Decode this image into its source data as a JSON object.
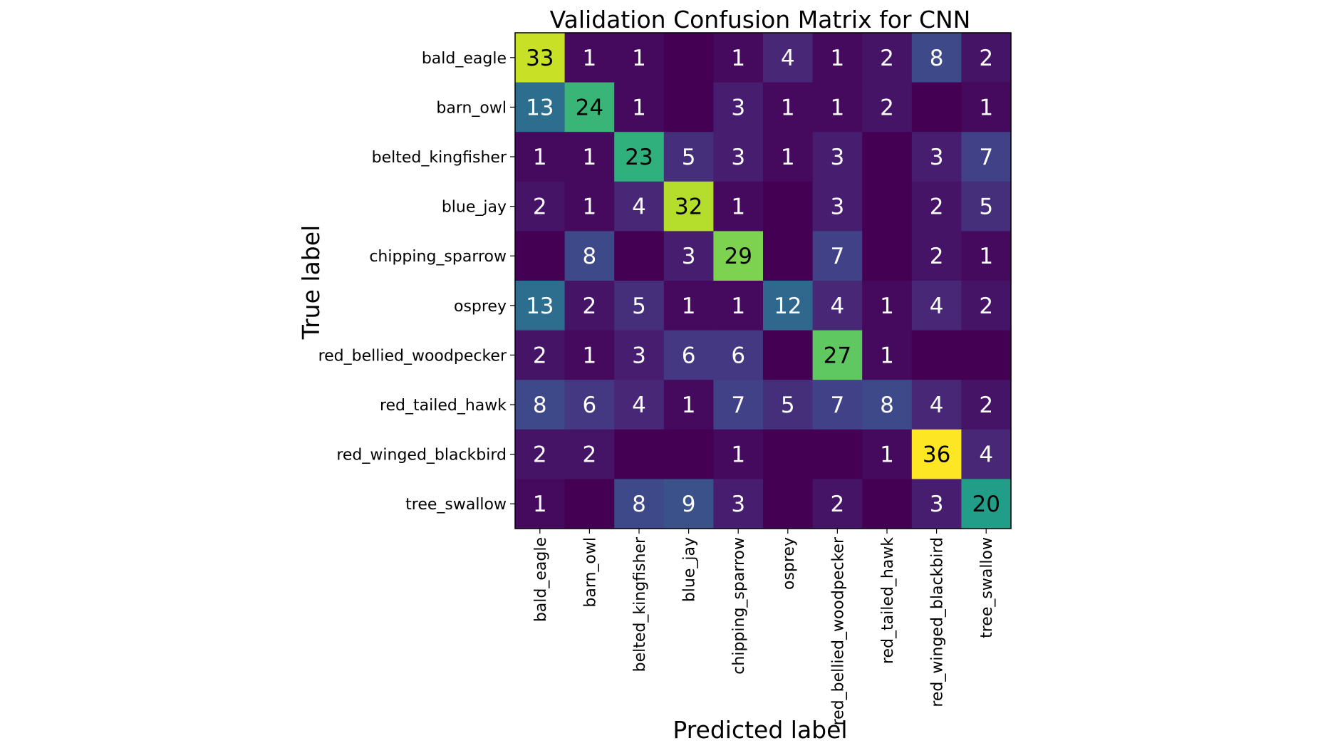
{
  "chart_data": {
    "type": "heatmap",
    "title": "Validation Confusion Matrix for CNN",
    "xlabel": "Predicted label",
    "ylabel": "True label",
    "x_categories": [
      "bald_eagle",
      "barn_owl",
      "belted_kingfisher",
      "blue_jay",
      "chipping_sparrow",
      "osprey",
      "red_bellied_woodpecker",
      "red_tailed_hawk",
      "red_winged_blackbird",
      "tree_swallow"
    ],
    "y_categories": [
      "bald_eagle",
      "barn_owl",
      "belted_kingfisher",
      "blue_jay",
      "chipping_sparrow",
      "osprey",
      "red_bellied_woodpecker",
      "red_tailed_hawk",
      "red_winged_blackbird",
      "tree_swallow"
    ],
    "values": [
      [
        33,
        1,
        1,
        0,
        1,
        4,
        1,
        2,
        8,
        2
      ],
      [
        13,
        24,
        1,
        0,
        3,
        1,
        1,
        2,
        0,
        1
      ],
      [
        1,
        1,
        23,
        5,
        3,
        1,
        3,
        0,
        3,
        7
      ],
      [
        2,
        1,
        4,
        32,
        1,
        0,
        3,
        0,
        2,
        5
      ],
      [
        0,
        8,
        0,
        3,
        29,
        0,
        7,
        0,
        2,
        1
      ],
      [
        13,
        2,
        5,
        1,
        1,
        12,
        4,
        1,
        4,
        2
      ],
      [
        2,
        1,
        3,
        6,
        6,
        0,
        27,
        1,
        0,
        0
      ],
      [
        8,
        6,
        4,
        1,
        7,
        5,
        7,
        8,
        4,
        2
      ],
      [
        2,
        2,
        0,
        0,
        1,
        0,
        0,
        1,
        36,
        4
      ],
      [
        1,
        0,
        8,
        9,
        3,
        0,
        2,
        0,
        3,
        20
      ]
    ],
    "zero_cells_labeled": false,
    "colormap": "viridis",
    "vmin": 0,
    "vmax": 36,
    "label_dark_threshold": 18,
    "label_colors": {
      "dark": "#000000",
      "light": "#ffffff"
    }
  }
}
